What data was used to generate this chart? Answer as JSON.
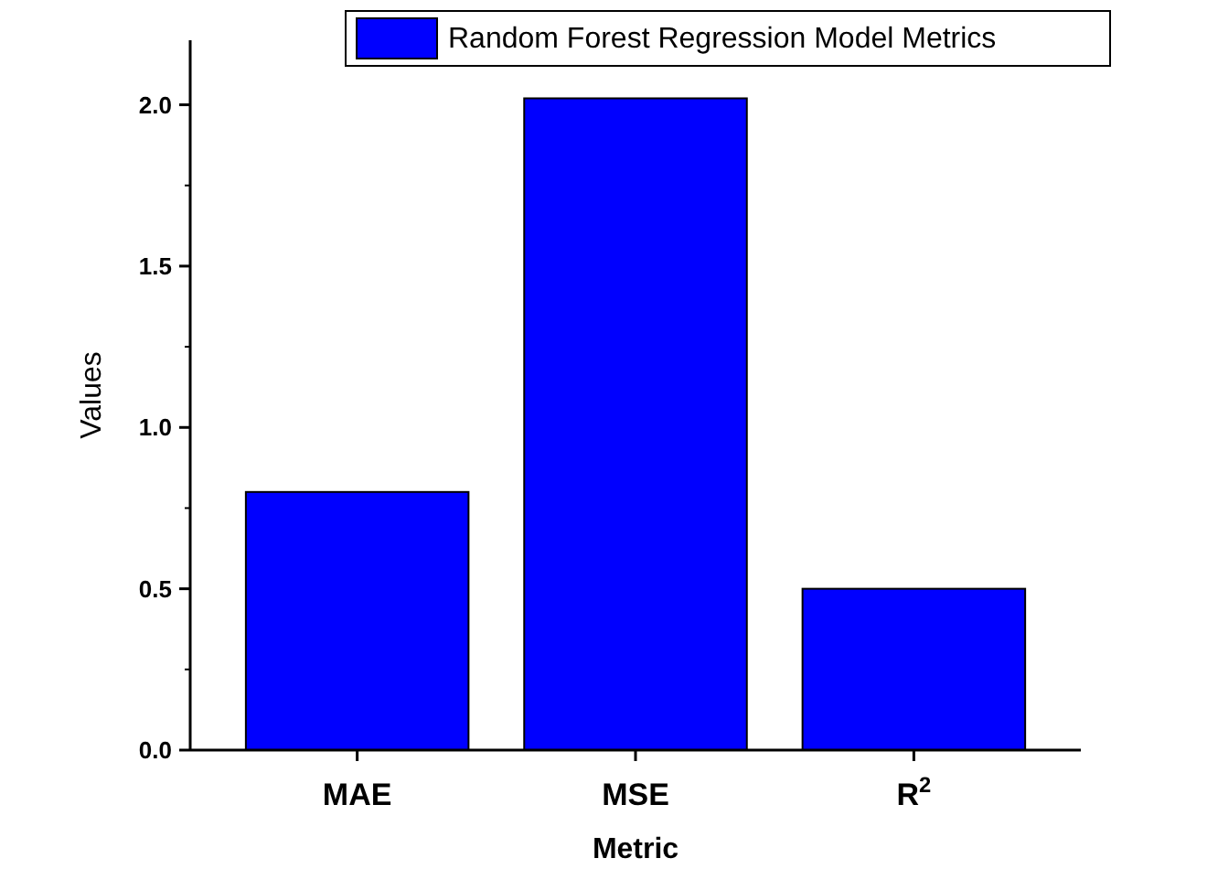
{
  "chart_data": {
    "type": "bar",
    "xlabel": "Metric",
    "ylabel": "Values",
    "categories": [
      "MAE",
      "MSE",
      "R$^{2}$"
    ],
    "series": [
      {
        "name": "Random Forest Regression Model Metrics",
        "color": "#0000ff",
        "values": [
          0.8,
          2.02,
          0.5
        ]
      }
    ],
    "ylim": [
      0,
      2.2
    ],
    "yticks": [
      {
        "value": 0,
        "label": "0.0"
      },
      {
        "value": 0.5,
        "label": "0.5"
      },
      {
        "value": 1,
        "label": "1.0"
      },
      {
        "value": 1.5,
        "label": "1.5"
      },
      {
        "value": 2,
        "label": "2.0"
      }
    ],
    "grid": false,
    "legend": "top right"
  }
}
